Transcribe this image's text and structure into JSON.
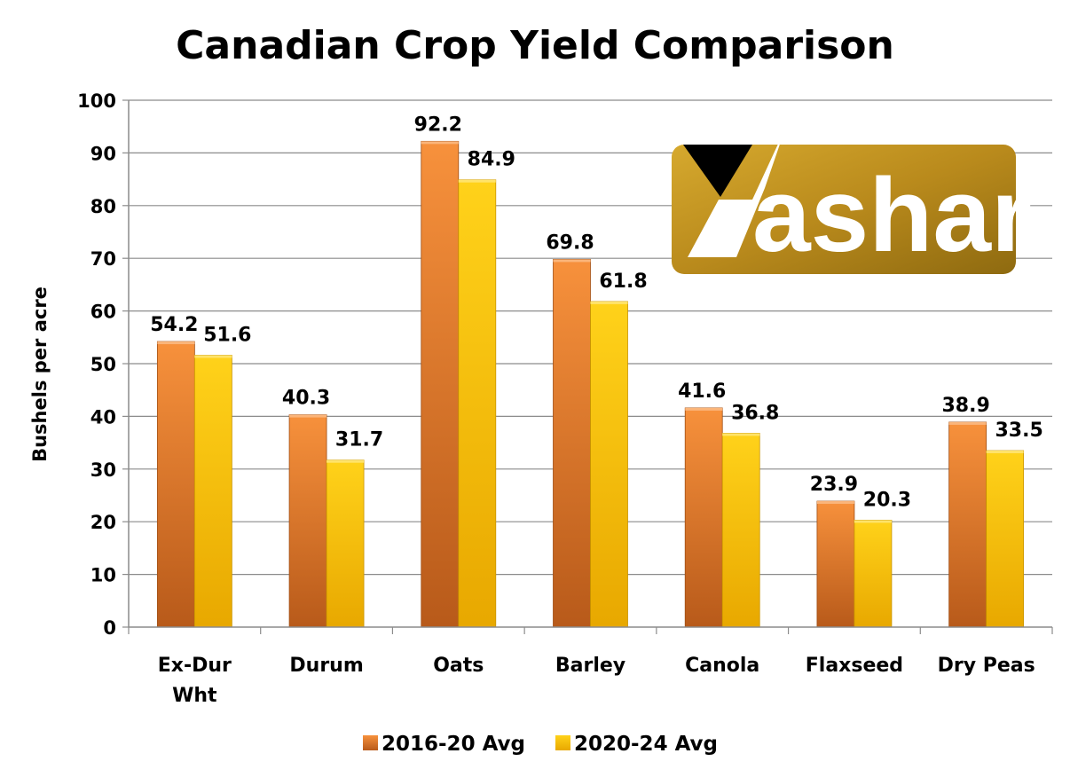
{
  "chart_data": {
    "type": "bar",
    "title": "Canadian Crop Yield Comparison",
    "xlabel": "",
    "ylabel": "Bushels per acre",
    "ylim": [
      0,
      100
    ],
    "yticks": [
      0,
      10,
      20,
      30,
      40,
      50,
      60,
      70,
      80,
      90,
      100
    ],
    "grid": true,
    "legend_position": "bottom",
    "categories": [
      [
        "Ex-Dur",
        "Wht"
      ],
      [
        "Durum"
      ],
      [
        "Oats"
      ],
      [
        "Barley"
      ],
      [
        "Canola"
      ],
      [
        "Flaxseed"
      ],
      [
        "Dry Peas"
      ]
    ],
    "series": [
      {
        "name": "2016-20 Avg",
        "color": "#E8752A",
        "values": [
          54.2,
          40.3,
          92.2,
          69.8,
          41.6,
          23.9,
          38.9
        ]
      },
      {
        "name": "2020-24 Avg",
        "color": "#FFC800",
        "values": [
          51.6,
          31.7,
          84.9,
          61.8,
          36.8,
          20.3,
          33.5
        ]
      }
    ]
  },
  "logo": {
    "text": "ashar"
  }
}
